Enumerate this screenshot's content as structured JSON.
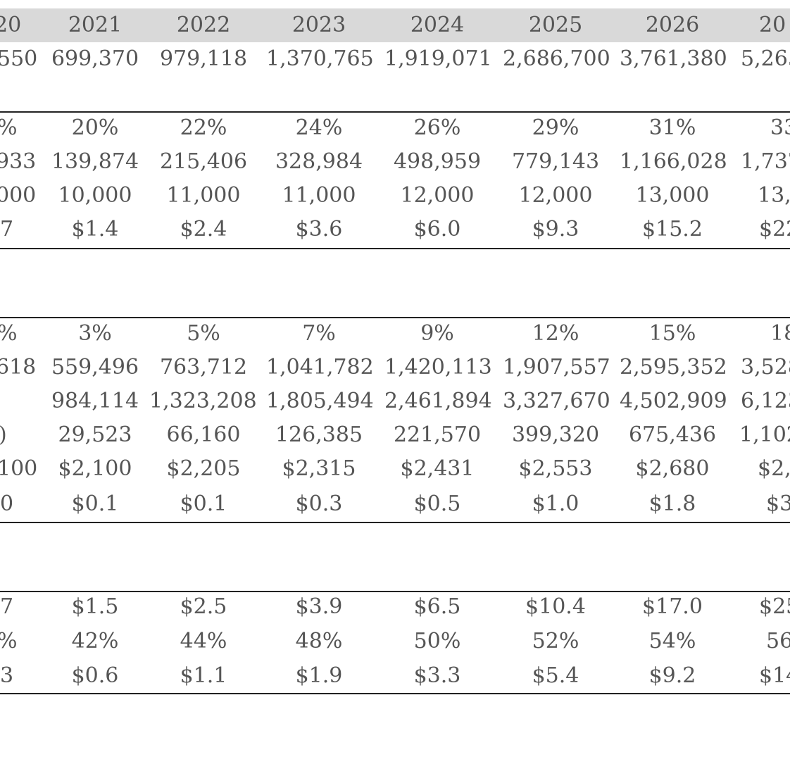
{
  "header": {
    "years": [
      "20",
      "2021",
      "2022",
      "2023",
      "2024",
      "2025",
      "2026",
      "20"
    ]
  },
  "rows": [
    [
      "550",
      "699,370",
      "979,118",
      "1,370,765",
      "1,919,071",
      "2,686,700",
      "3,761,380",
      "5,265"
    ],
    [
      "%",
      "20%",
      "22%",
      "24%",
      "26%",
      "29%",
      "31%",
      "33"
    ],
    [
      "933",
      "139,874",
      "215,406",
      "328,984",
      "498,959",
      "779,143",
      "1,166,028",
      "1,737"
    ],
    [
      "000",
      "10,000",
      "11,000",
      "11,000",
      "12,000",
      "12,000",
      "13,000",
      "13,0"
    ],
    [
      "7",
      "$1.4",
      "$2.4",
      "$3.6",
      "$6.0",
      "$9.3",
      "$15.2",
      "$22"
    ],
    [
      "%",
      "3%",
      "5%",
      "7%",
      "9%",
      "12%",
      "15%",
      "18"
    ],
    [
      "618",
      "559,496",
      "763,712",
      "1,041,782",
      "1,420,113",
      "1,907,557",
      "2,595,352",
      "3,528"
    ],
    [
      "",
      "984,114",
      "1,323,208",
      "1,805,494",
      "2,461,894",
      "3,327,670",
      "4,502,909",
      "6,123"
    ],
    [
      ")",
      "29,523",
      "66,160",
      "126,385",
      "221,570",
      "399,320",
      "675,436",
      "1,102"
    ],
    [
      "100",
      "$2,100",
      "$2,205",
      "$2,315",
      "$2,431",
      "$2,553",
      "$2,680",
      "$2,"
    ],
    [
      "0",
      "$0.1",
      "$0.1",
      "$0.3",
      "$0.5",
      "$1.0",
      "$1.8",
      "$3"
    ],
    [
      "7",
      "$1.5",
      "$2.5",
      "$3.9",
      "$6.5",
      "$10.4",
      "$17.0",
      "$25"
    ],
    [
      "%",
      "42%",
      "44%",
      "48%",
      "50%",
      "52%",
      "54%",
      "56"
    ],
    [
      "3",
      "$0.6",
      "$1.1",
      "$1.9",
      "$3.3",
      "$5.4",
      "$9.2",
      "$14"
    ]
  ]
}
